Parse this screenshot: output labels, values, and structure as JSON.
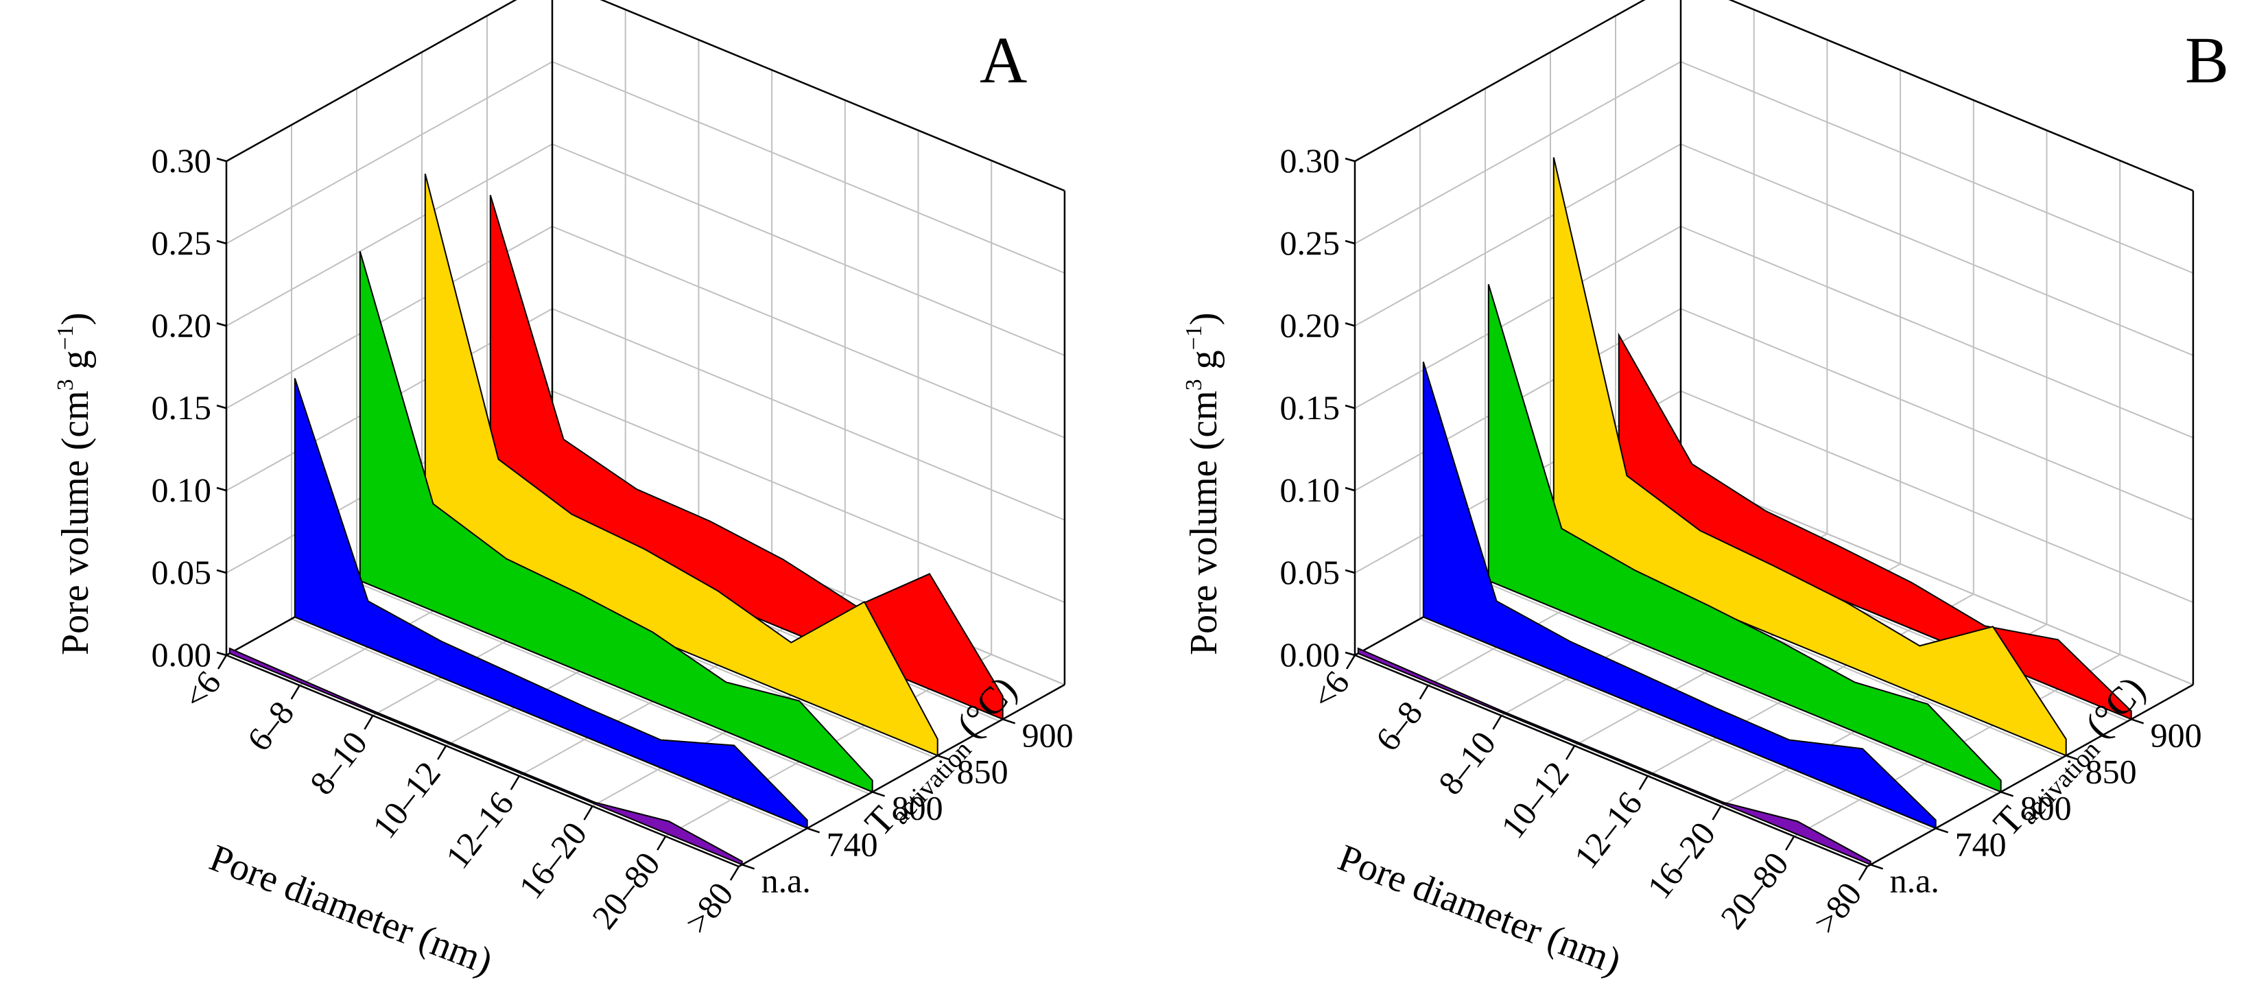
{
  "chart_data": [
    {
      "type": "area",
      "panel_label": "A",
      "categories": [
        "<6",
        "6–8",
        "8–10",
        "10–12",
        "12–16",
        "16–20",
        "20–80",
        ">80"
      ],
      "xlabel": "Pore diameter (nm)",
      "ylabel": "Pore volume (cm",
      "ylabel_sup1": "3",
      "ylabel_mid": " g",
      "ylabel_sup2": "−1",
      "ylabel_end": ")",
      "zlabel_main": "T",
      "zlabel_sub": "activation",
      "zlabel_unit": "(°C)",
      "ylim": [
        0,
        0.3
      ],
      "yticks": [
        "0.00",
        "0.05",
        "0.10",
        "0.15",
        "0.20",
        "0.25",
        "0.30"
      ],
      "series": [
        {
          "name": "n.a.",
          "color": "#7a0fb4",
          "values": [
            0.003,
            0.002,
            0.001,
            0.001,
            0.001,
            0.001,
            0.008,
            0.002
          ]
        },
        {
          "name": "740",
          "color": "#0000ff",
          "values": [
            0.145,
            0.028,
            0.022,
            0.02,
            0.018,
            0.017,
            0.032,
            0.005
          ]
        },
        {
          "name": "800",
          "color": "#00cc00",
          "values": [
            0.2,
            0.065,
            0.05,
            0.047,
            0.042,
            0.03,
            0.037,
            0.007
          ]
        },
        {
          "name": "850",
          "color": "#ffd700",
          "values": [
            0.225,
            0.07,
            0.055,
            0.052,
            0.045,
            0.032,
            0.075,
            0.01
          ]
        },
        {
          "name": "900",
          "color": "#ff0000",
          "values": [
            0.19,
            0.06,
            0.048,
            0.047,
            0.042,
            0.032,
            0.07,
            0.014
          ]
        }
      ]
    },
    {
      "type": "area",
      "panel_label": "B",
      "categories": [
        "<6",
        "6–8",
        "8–10",
        "10–12",
        "12–16",
        "16–20",
        "20–80",
        ">80"
      ],
      "xlabel": "Pore diameter (nm)",
      "ylabel": "Pore volume (cm",
      "ylabel_sup1": "3",
      "ylabel_mid": " g",
      "ylabel_sup2": "−1",
      "ylabel_end": ")",
      "zlabel_main": "T",
      "zlabel_sub": "activation",
      "zlabel_unit": "(°C)",
      "ylim": [
        0,
        0.3
      ],
      "yticks": [
        "0.00",
        "0.05",
        "0.10",
        "0.15",
        "0.20",
        "0.25",
        "0.30"
      ],
      "series": [
        {
          "name": "n.a.",
          "color": "#7a0fb4",
          "values": [
            0.003,
            0.002,
            0.001,
            0.001,
            0.001,
            0.001,
            0.008,
            0.002
          ]
        },
        {
          "name": "740",
          "color": "#0000ff",
          "values": [
            0.155,
            0.028,
            0.022,
            0.02,
            0.018,
            0.017,
            0.03,
            0.005
          ]
        },
        {
          "name": "800",
          "color": "#00cc00",
          "values": [
            0.18,
            0.05,
            0.043,
            0.04,
            0.036,
            0.03,
            0.035,
            0.007
          ]
        },
        {
          "name": "850",
          "color": "#ffd700",
          "values": [
            0.235,
            0.06,
            0.045,
            0.042,
            0.038,
            0.03,
            0.06,
            0.01
          ]
        },
        {
          "name": "900",
          "color": "#ff0000",
          "values": [
            0.105,
            0.045,
            0.035,
            0.032,
            0.028,
            0.02,
            0.03,
            0.005
          ]
        }
      ]
    }
  ]
}
